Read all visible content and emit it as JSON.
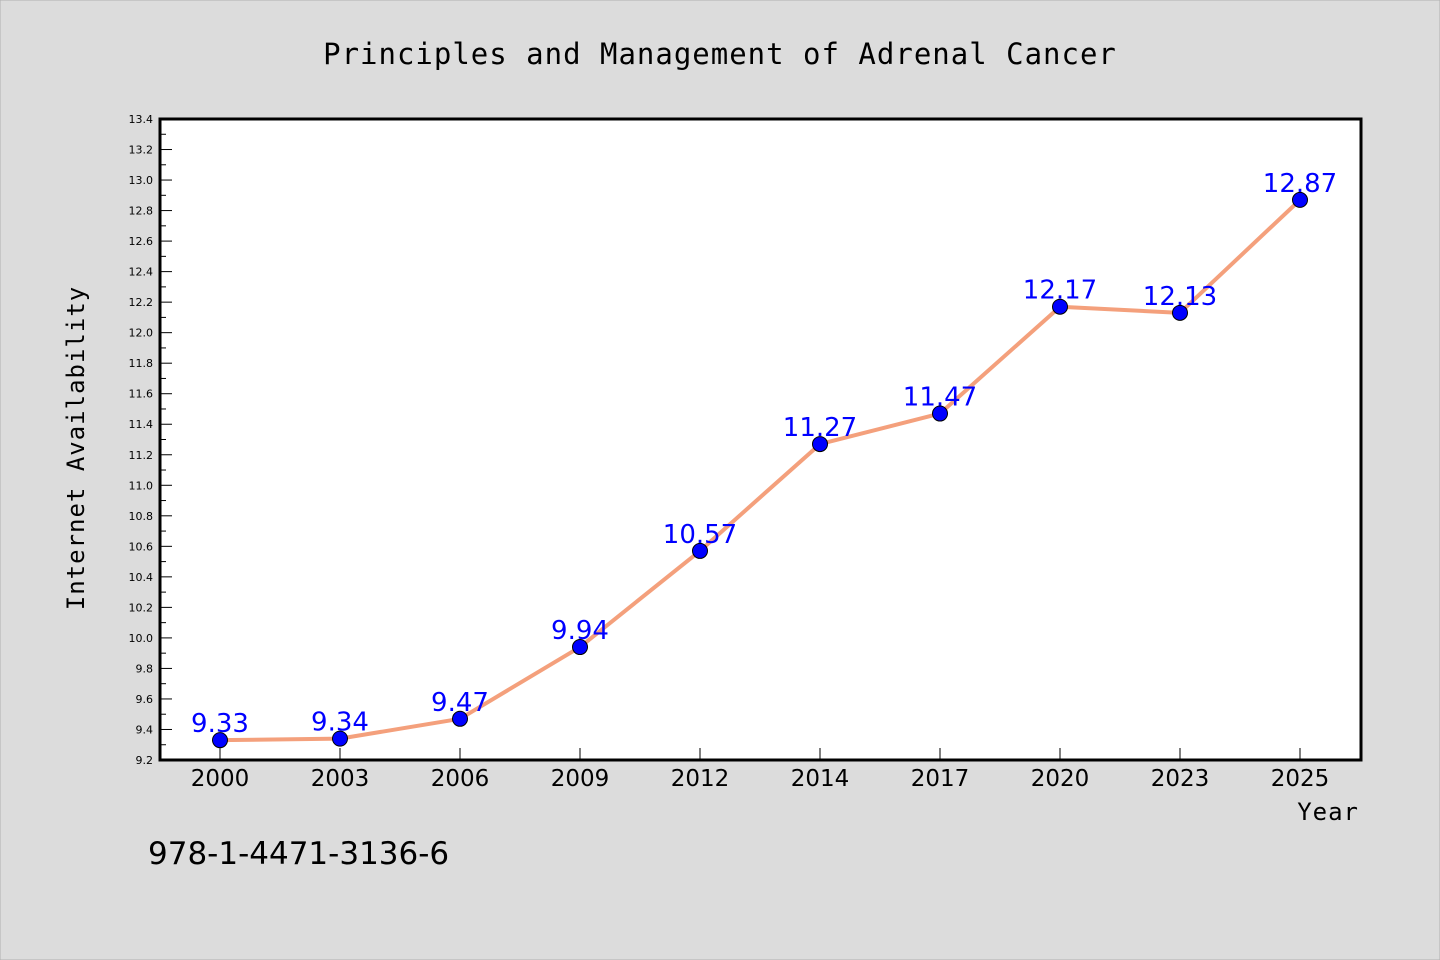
{
  "chart_data": {
    "type": "line",
    "title": "Principles and Management of Adrenal Cancer",
    "xlabel": "Year",
    "ylabel": "Internet Availability",
    "categories": [
      "2000",
      "2003",
      "2006",
      "2009",
      "2012",
      "2014",
      "2017",
      "2020",
      "2023",
      "2025"
    ],
    "series": [
      {
        "values": [
          9.33,
          9.34,
          9.47,
          9.94,
          10.57,
          11.27,
          11.47,
          12.17,
          12.13,
          12.87
        ],
        "data_labels": [
          "9.33",
          "9.34",
          "9.47",
          "9.94",
          "10.57",
          "11.27",
          "11.47",
          "12.17",
          "12.13",
          "12.87"
        ]
      }
    ],
    "ylim": [
      9.2,
      13.4
    ],
    "yticks": [
      "9.2",
      "9.4",
      "9.6",
      "9.8",
      "10.0",
      "10.2",
      "10.4",
      "10.6",
      "10.8",
      "11.0",
      "11.2",
      "11.4",
      "11.6",
      "11.8",
      "12.0",
      "12.2",
      "12.4",
      "12.6",
      "12.8",
      "13.0",
      "13.2",
      "13.4"
    ],
    "grid": false,
    "legend": "none",
    "colors": {
      "line": "#f4a07c",
      "marker": "#0000ff",
      "data_label": "#0000ff",
      "plot_background": "#ffffff",
      "page_background": "#dcdcdc"
    }
  },
  "footnote": "978-1-4471-3136-6"
}
